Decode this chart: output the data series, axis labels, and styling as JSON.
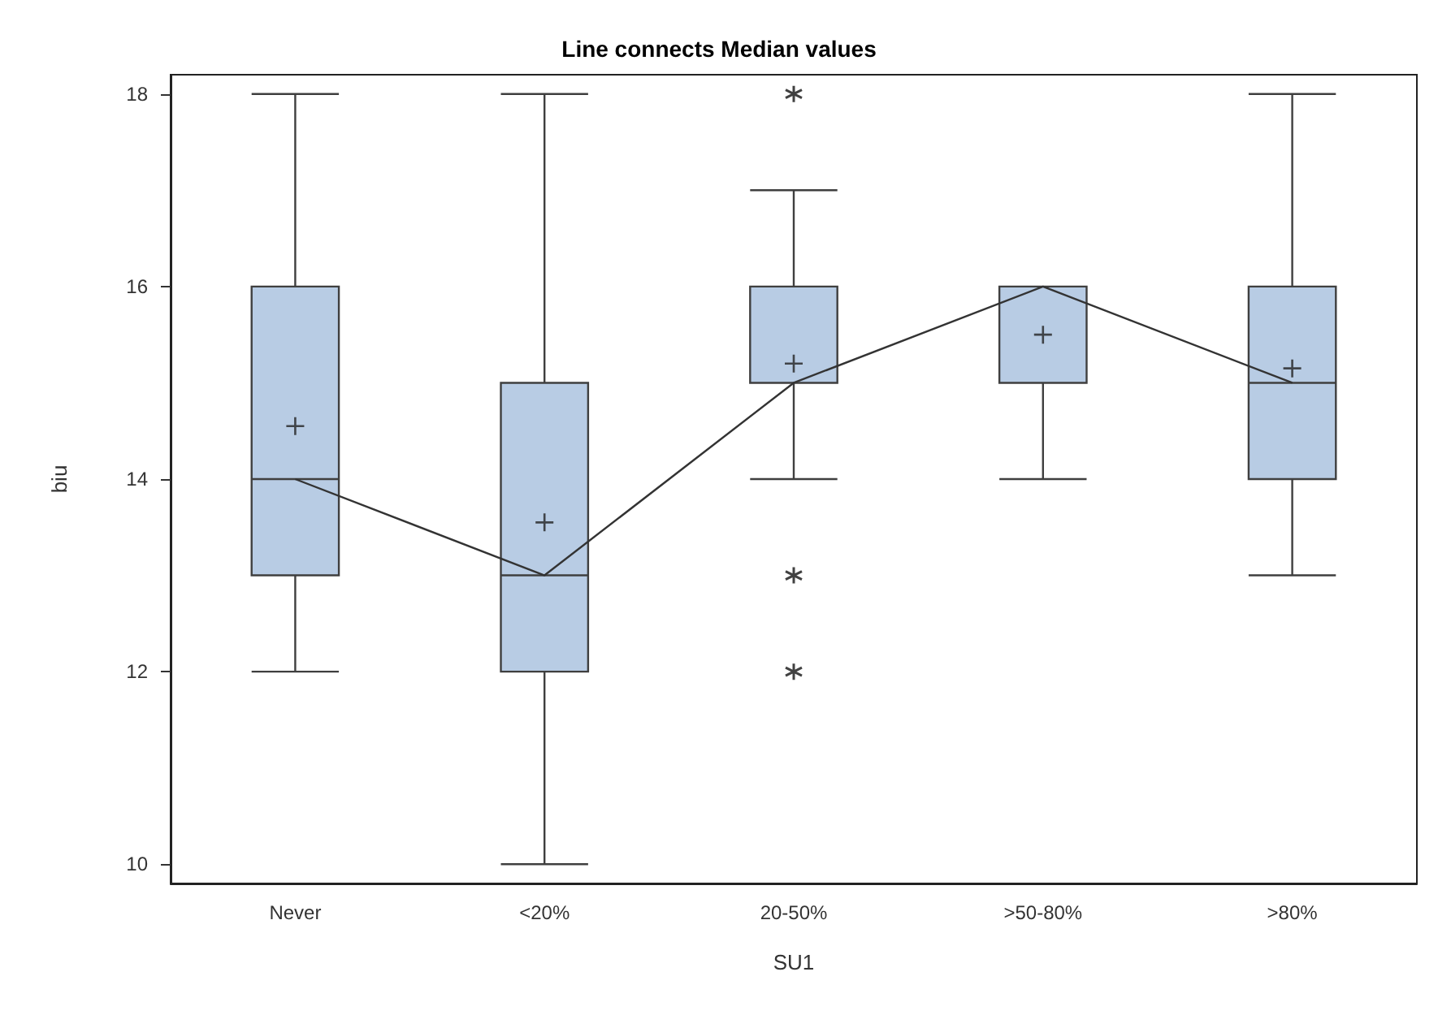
{
  "chart_data": {
    "type": "box",
    "title": "Line connects Median values",
    "xlabel": "SU1",
    "ylabel": "biu",
    "categories": [
      "Never",
      "<20%",
      "20-50%",
      ">50-80%",
      ">80%"
    ],
    "ylim": [
      9.8,
      18.2
    ],
    "yticks": [
      10,
      12,
      14,
      16,
      18
    ],
    "series": [
      {
        "color": "#b8cce4",
        "boxes": [
          {
            "low": 12,
            "q1": 13,
            "median": 14,
            "q3": 16,
            "high": 18,
            "mean": 14.55
          },
          {
            "low": 10,
            "q1": 12,
            "median": 13,
            "q3": 15,
            "high": 18,
            "mean": 13.55
          },
          {
            "low": 14,
            "q1": 15,
            "median": 15,
            "q3": 16,
            "high": 17,
            "mean": 15.2,
            "outliers": [
              18,
              13,
              12
            ]
          },
          {
            "low": 14,
            "q1": 15,
            "median": 16,
            "q3": 16,
            "high": 16,
            "mean": 15.5
          },
          {
            "low": 13,
            "q1": 14,
            "median": 15,
            "q3": 16,
            "high": 18,
            "mean": 15.15
          }
        ]
      },
      {
        "type": "line",
        "color": "#333333",
        "values": [
          14,
          13,
          15,
          16,
          15
        ]
      }
    ]
  }
}
